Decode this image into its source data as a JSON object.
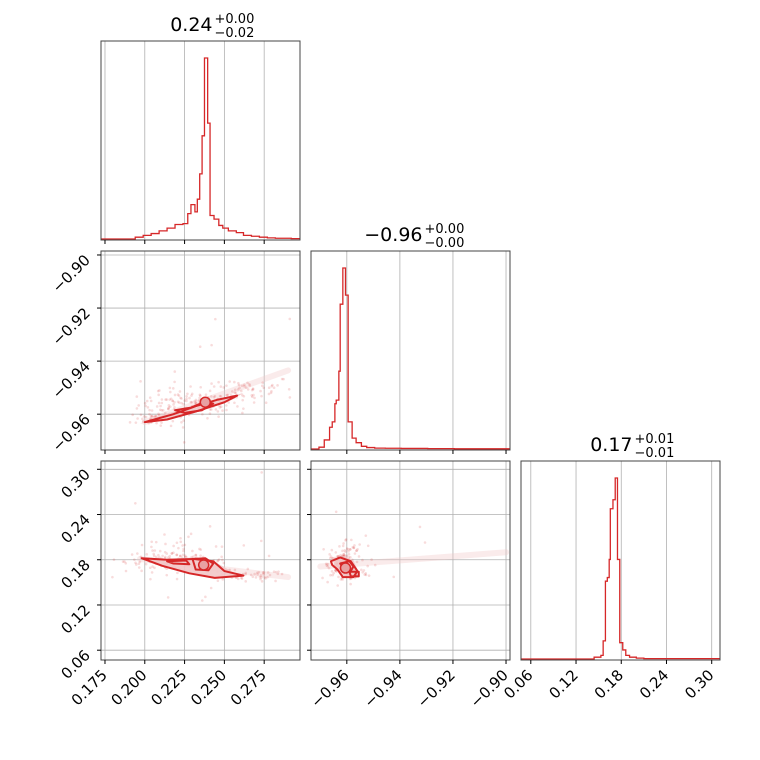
{
  "chart_data": {
    "type": "corner",
    "color": "#d62728",
    "fill_color": "#f2c7c8",
    "grid": true,
    "parameters": [
      {
        "index": 0,
        "title": {
          "median": "0.24",
          "plus": "+0.00",
          "minus": "−0.02"
        },
        "range": [
          0.1725,
          0.2975
        ],
        "ticks": [
          {
            "v": 0.175,
            "label": "0.175"
          },
          {
            "v": 0.2,
            "label": "0.200"
          },
          {
            "v": 0.225,
            "label": "0.225"
          },
          {
            "v": 0.25,
            "label": "0.250"
          },
          {
            "v": 0.275,
            "label": "0.275"
          }
        ],
        "hist": [
          [
            0.1725,
            0
          ],
          [
            0.1775,
            0
          ],
          [
            0.182,
            0
          ],
          [
            0.1875,
            0
          ],
          [
            0.192,
            0
          ],
          [
            0.194,
            0.01
          ],
          [
            0.199,
            0.02
          ],
          [
            0.204,
            0.03
          ],
          [
            0.209,
            0.045
          ],
          [
            0.214,
            0.06
          ],
          [
            0.219,
            0.08
          ],
          [
            0.224,
            0.085
          ],
          [
            0.227,
            0.14
          ],
          [
            0.229,
            0.19
          ],
          [
            0.2315,
            0.15
          ],
          [
            0.233,
            0.22
          ],
          [
            0.2345,
            0.36
          ],
          [
            0.236,
            0.57
          ],
          [
            0.2375,
            1.0
          ],
          [
            0.2395,
            0.64
          ],
          [
            0.241,
            0.13
          ],
          [
            0.2435,
            0.11
          ],
          [
            0.2465,
            0.075
          ],
          [
            0.249,
            0.06
          ],
          [
            0.2525,
            0.045
          ],
          [
            0.2575,
            0.035
          ],
          [
            0.262,
            0.02
          ],
          [
            0.267,
            0.015
          ],
          [
            0.272,
            0.01
          ],
          [
            0.277,
            0.006
          ],
          [
            0.282,
            0.004
          ],
          [
            0.287,
            0.004
          ],
          [
            0.292,
            0.002
          ],
          [
            0.2975,
            0
          ]
        ]
      },
      {
        "index": 1,
        "title": {
          "median": "−0.96",
          "plus": "+0.00",
          "minus": "−0.00"
        },
        "range": [
          -0.9735,
          -0.8985
        ],
        "ticks": [
          {
            "v": -0.96,
            "label": "−0.96"
          },
          {
            "v": -0.94,
            "label": "−0.94"
          },
          {
            "v": -0.92,
            "label": "−0.92"
          },
          {
            "v": -0.9,
            "label": "−0.90"
          }
        ],
        "hist": [
          [
            -0.9735,
            0
          ],
          [
            -0.9705,
            0.01
          ],
          [
            -0.9685,
            0.05
          ],
          [
            -0.9665,
            0.12
          ],
          [
            -0.9655,
            0.15
          ],
          [
            -0.9645,
            0.25
          ],
          [
            -0.964,
            0.27
          ],
          [
            -0.963,
            0.43
          ],
          [
            -0.9625,
            0.8
          ],
          [
            -0.9615,
            1.0
          ],
          [
            -0.9605,
            0.85
          ],
          [
            -0.9595,
            0.15
          ],
          [
            -0.958,
            0.06
          ],
          [
            -0.9565,
            0.035
          ],
          [
            -0.9545,
            0.015
          ],
          [
            -0.9525,
            0.008
          ],
          [
            -0.9495,
            0.005
          ],
          [
            -0.9455,
            0.004
          ],
          [
            -0.9395,
            0.003
          ],
          [
            -0.9295,
            0.002
          ],
          [
            -0.9195,
            0.001
          ],
          [
            -0.9095,
            0.001
          ],
          [
            -0.8985,
            0
          ]
        ]
      },
      {
        "index": 2,
        "title": {
          "median": "0.17",
          "plus": "+0.01",
          "minus": "−0.01"
        },
        "range": [
          0.047,
          0.311
        ],
        "ticks": [
          {
            "v": 0.06,
            "label": "0.06"
          },
          {
            "v": 0.12,
            "label": "0.12"
          },
          {
            "v": 0.18,
            "label": "0.18"
          },
          {
            "v": 0.24,
            "label": "0.24"
          },
          {
            "v": 0.3,
            "label": "0.30"
          }
        ],
        "hist": [
          [
            0.047,
            0
          ],
          [
            0.12,
            0
          ],
          [
            0.144,
            0.01
          ],
          [
            0.153,
            0.02
          ],
          [
            0.156,
            0.1
          ],
          [
            0.159,
            0.43
          ],
          [
            0.1615,
            0.45
          ],
          [
            0.164,
            0.55
          ],
          [
            0.1655,
            0.83
          ],
          [
            0.169,
            0.88
          ],
          [
            0.172,
            1.0
          ],
          [
            0.175,
            0.55
          ],
          [
            0.178,
            0.09
          ],
          [
            0.182,
            0.05
          ],
          [
            0.186,
            0.02
          ],
          [
            0.191,
            0.01
          ],
          [
            0.2,
            0.005
          ],
          [
            0.21,
            0.002
          ],
          [
            0.311,
            0
          ]
        ]
      }
    ],
    "pairs": [
      {
        "row": 1,
        "col": 0,
        "ylim": [
          -0.9735,
          -0.8985
        ],
        "density_axis": {
          "x": [
            0.2,
            0.29
          ],
          "y": [
            -0.963,
            -0.9435
          ]
        },
        "density_width": 0.0038,
        "clusters": [
          {
            "cx": 0.228,
            "cy": -0.9565,
            "sx": 0.016,
            "sy": 0.0025,
            "n": 120
          },
          {
            "cx": 0.26,
            "cy": -0.9505,
            "sx": 0.018,
            "sy": 0.0025,
            "n": 70
          },
          {
            "cx": 0.205,
            "cy": -0.962,
            "sx": 0.007,
            "sy": 0.0015,
            "n": 40
          },
          {
            "cx": 0.24,
            "cy": -0.945,
            "sx": 0.025,
            "sy": 0.012,
            "n": 18
          }
        ],
        "fill_contours": [
          [
            [
              0.197,
              -0.9635
            ],
            [
              0.215,
              -0.9595
            ],
            [
              0.232,
              -0.9575
            ],
            [
              0.255,
              -0.953
            ],
            [
              0.262,
              -0.952
            ],
            [
              0.255,
              -0.9545
            ],
            [
              0.235,
              -0.9585
            ],
            [
              0.21,
              -0.9625
            ]
          ]
        ],
        "line_contours": [
          [
            [
              0.2,
              -0.963
            ],
            [
              0.218,
              -0.96
            ],
            [
              0.232,
              -0.957
            ],
            [
              0.246,
              -0.9545
            ],
            [
              0.258,
              -0.953
            ],
            [
              0.25,
              -0.9555
            ],
            [
              0.232,
              -0.959
            ],
            [
              0.214,
              -0.962
            ]
          ],
          [
            [
              0.219,
              -0.9585
            ],
            [
              0.229,
              -0.9575
            ],
            [
              0.237,
              -0.9555
            ],
            [
              0.243,
              -0.956
            ],
            [
              0.236,
              -0.9585
            ],
            [
              0.225,
              -0.9595
            ]
          ],
          [
            [
              0.2355,
              -0.9545
            ],
            [
              0.2405,
              -0.9545
            ],
            [
              0.2415,
              -0.9565
            ],
            [
              0.2365,
              -0.957
            ]
          ]
        ],
        "dots": [
          [
            0.238,
            -0.9555
          ]
        ]
      },
      {
        "row": 2,
        "col": 0,
        "ylim": [
          0.047,
          0.311
        ],
        "density_axis": {
          "x": [
            0.197,
            0.29
          ],
          "y": [
            0.181,
            0.157
          ]
        },
        "density_width": 0.012,
        "clusters": [
          {
            "cx": 0.22,
            "cy": 0.178,
            "sx": 0.016,
            "sy": 0.007,
            "n": 130
          },
          {
            "cx": 0.26,
            "cy": 0.158,
            "sx": 0.015,
            "sy": 0.004,
            "n": 60
          },
          {
            "cx": 0.225,
            "cy": 0.195,
            "sx": 0.02,
            "sy": 0.015,
            "n": 30
          },
          {
            "cx": 0.24,
            "cy": 0.2,
            "sx": 0.03,
            "sy": 0.05,
            "n": 12
          }
        ],
        "fill_contours": [
          [
            [
              0.197,
              0.183
            ],
            [
              0.213,
              0.181
            ],
            [
              0.23,
              0.183
            ],
            [
              0.245,
              0.176
            ],
            [
              0.26,
              0.158
            ],
            [
              0.245,
              0.157
            ],
            [
              0.23,
              0.162
            ],
            [
              0.212,
              0.171
            ]
          ]
        ],
        "line_contours": [
          [
            [
              0.198,
              0.182
            ],
            [
              0.214,
              0.18
            ],
            [
              0.231,
              0.181
            ],
            [
              0.243,
              0.178
            ],
            [
              0.25,
              0.165
            ],
            [
              0.262,
              0.159
            ],
            [
              0.244,
              0.156
            ],
            [
              0.228,
              0.162
            ],
            [
              0.211,
              0.172
            ]
          ],
          [
            [
              0.23,
              0.181
            ],
            [
              0.238,
              0.182
            ],
            [
              0.243,
              0.175
            ],
            [
              0.24,
              0.166
            ],
            [
              0.232,
              0.167
            ]
          ],
          [
            [
              0.214,
              0.178
            ],
            [
              0.226,
              0.179
            ],
            [
              0.228,
              0.174
            ],
            [
              0.218,
              0.175
            ]
          ]
        ],
        "dots": [
          [
            0.237,
            0.173
          ]
        ]
      },
      {
        "row": 2,
        "col": 1,
        "ylim": [
          0.047,
          0.311
        ],
        "density_axis": {
          "x": [
            -0.97,
            -0.9
          ],
          "y": [
            0.171,
            0.19
          ]
        },
        "density_width": 0.012,
        "clusters": [
          {
            "cx": -0.962,
            "cy": 0.174,
            "sx": 0.0025,
            "sy": 0.007,
            "n": 130
          },
          {
            "cx": -0.958,
            "cy": 0.162,
            "sx": 0.003,
            "sy": 0.005,
            "n": 60
          },
          {
            "cx": -0.96,
            "cy": 0.192,
            "sx": 0.003,
            "sy": 0.008,
            "n": 30
          },
          {
            "cx": -0.952,
            "cy": 0.2,
            "sx": 0.009,
            "sy": 0.03,
            "n": 15
          }
        ],
        "fill_contours": [
          [
            [
              -0.9655,
              0.181
            ],
            [
              -0.961,
              0.185
            ],
            [
              -0.9575,
              0.179
            ],
            [
              -0.956,
              0.167
            ],
            [
              -0.958,
              0.157
            ],
            [
              -0.9615,
              0.158
            ],
            [
              -0.964,
              0.168
            ]
          ]
        ],
        "line_contours": [
          [
            [
              -0.966,
              0.178
            ],
            [
              -0.9625,
              0.183
            ],
            [
              -0.9585,
              0.178
            ],
            [
              -0.956,
              0.165
            ],
            [
              -0.9575,
              0.157
            ],
            [
              -0.9615,
              0.157
            ],
            [
              -0.9635,
              0.167
            ],
            [
              -0.9655,
              0.173
            ]
          ],
          [
            [
              -0.9625,
              0.175
            ],
            [
              -0.959,
              0.178
            ],
            [
              -0.9575,
              0.171
            ],
            [
              -0.9585,
              0.165
            ],
            [
              -0.961,
              0.166
            ]
          ],
          [
            [
              -0.959,
              0.164
            ],
            [
              -0.9555,
              0.164
            ],
            [
              -0.9555,
              0.158
            ],
            [
              -0.9585,
              0.158
            ]
          ]
        ],
        "dots": [
          [
            -0.9605,
            0.169
          ]
        ]
      }
    ]
  }
}
